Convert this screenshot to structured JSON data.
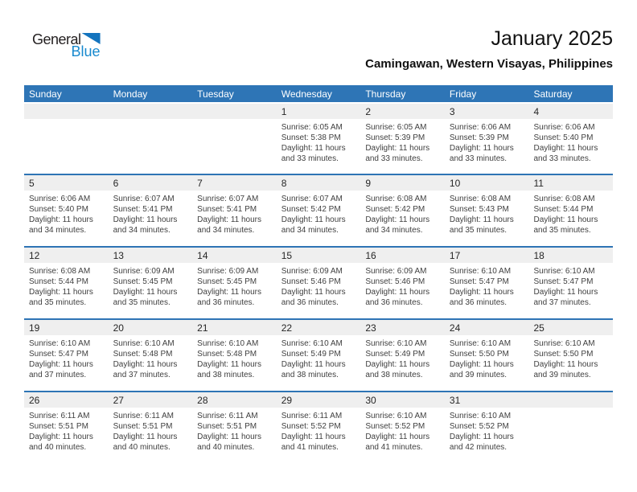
{
  "logo": {
    "general": "General",
    "blue": "Blue"
  },
  "header": {
    "title": "January 2025",
    "subtitle": "Camingawan, Western Visayas, Philippines"
  },
  "colors": {
    "header_bg": "#2E75B6",
    "row_line": "#2E74B5",
    "band_bg": "#EFEFEF",
    "logo_blue": "#1789CE",
    "logo_triangle": "#1474BE"
  },
  "calendar": {
    "day_headers": [
      "Sunday",
      "Monday",
      "Tuesday",
      "Wednesday",
      "Thursday",
      "Friday",
      "Saturday"
    ],
    "weeks": [
      [
        null,
        null,
        null,
        {
          "day": "1",
          "sunrise": "Sunrise: 6:05 AM",
          "sunset": "Sunset: 5:38 PM",
          "daylight": "Daylight: 11 hours and 33 minutes."
        },
        {
          "day": "2",
          "sunrise": "Sunrise: 6:05 AM",
          "sunset": "Sunset: 5:39 PM",
          "daylight": "Daylight: 11 hours and 33 minutes."
        },
        {
          "day": "3",
          "sunrise": "Sunrise: 6:06 AM",
          "sunset": "Sunset: 5:39 PM",
          "daylight": "Daylight: 11 hours and 33 minutes."
        },
        {
          "day": "4",
          "sunrise": "Sunrise: 6:06 AM",
          "sunset": "Sunset: 5:40 PM",
          "daylight": "Daylight: 11 hours and 33 minutes."
        }
      ],
      [
        {
          "day": "5",
          "sunrise": "Sunrise: 6:06 AM",
          "sunset": "Sunset: 5:40 PM",
          "daylight": "Daylight: 11 hours and 34 minutes."
        },
        {
          "day": "6",
          "sunrise": "Sunrise: 6:07 AM",
          "sunset": "Sunset: 5:41 PM",
          "daylight": "Daylight: 11 hours and 34 minutes."
        },
        {
          "day": "7",
          "sunrise": "Sunrise: 6:07 AM",
          "sunset": "Sunset: 5:41 PM",
          "daylight": "Daylight: 11 hours and 34 minutes."
        },
        {
          "day": "8",
          "sunrise": "Sunrise: 6:07 AM",
          "sunset": "Sunset: 5:42 PM",
          "daylight": "Daylight: 11 hours and 34 minutes."
        },
        {
          "day": "9",
          "sunrise": "Sunrise: 6:08 AM",
          "sunset": "Sunset: 5:42 PM",
          "daylight": "Daylight: 11 hours and 34 minutes."
        },
        {
          "day": "10",
          "sunrise": "Sunrise: 6:08 AM",
          "sunset": "Sunset: 5:43 PM",
          "daylight": "Daylight: 11 hours and 35 minutes."
        },
        {
          "day": "11",
          "sunrise": "Sunrise: 6:08 AM",
          "sunset": "Sunset: 5:44 PM",
          "daylight": "Daylight: 11 hours and 35 minutes."
        }
      ],
      [
        {
          "day": "12",
          "sunrise": "Sunrise: 6:08 AM",
          "sunset": "Sunset: 5:44 PM",
          "daylight": "Daylight: 11 hours and 35 minutes."
        },
        {
          "day": "13",
          "sunrise": "Sunrise: 6:09 AM",
          "sunset": "Sunset: 5:45 PM",
          "daylight": "Daylight: 11 hours and 35 minutes."
        },
        {
          "day": "14",
          "sunrise": "Sunrise: 6:09 AM",
          "sunset": "Sunset: 5:45 PM",
          "daylight": "Daylight: 11 hours and 36 minutes."
        },
        {
          "day": "15",
          "sunrise": "Sunrise: 6:09 AM",
          "sunset": "Sunset: 5:46 PM",
          "daylight": "Daylight: 11 hours and 36 minutes."
        },
        {
          "day": "16",
          "sunrise": "Sunrise: 6:09 AM",
          "sunset": "Sunset: 5:46 PM",
          "daylight": "Daylight: 11 hours and 36 minutes."
        },
        {
          "day": "17",
          "sunrise": "Sunrise: 6:10 AM",
          "sunset": "Sunset: 5:47 PM",
          "daylight": "Daylight: 11 hours and 36 minutes."
        },
        {
          "day": "18",
          "sunrise": "Sunrise: 6:10 AM",
          "sunset": "Sunset: 5:47 PM",
          "daylight": "Daylight: 11 hours and 37 minutes."
        }
      ],
      [
        {
          "day": "19",
          "sunrise": "Sunrise: 6:10 AM",
          "sunset": "Sunset: 5:47 PM",
          "daylight": "Daylight: 11 hours and 37 minutes."
        },
        {
          "day": "20",
          "sunrise": "Sunrise: 6:10 AM",
          "sunset": "Sunset: 5:48 PM",
          "daylight": "Daylight: 11 hours and 37 minutes."
        },
        {
          "day": "21",
          "sunrise": "Sunrise: 6:10 AM",
          "sunset": "Sunset: 5:48 PM",
          "daylight": "Daylight: 11 hours and 38 minutes."
        },
        {
          "day": "22",
          "sunrise": "Sunrise: 6:10 AM",
          "sunset": "Sunset: 5:49 PM",
          "daylight": "Daylight: 11 hours and 38 minutes."
        },
        {
          "day": "23",
          "sunrise": "Sunrise: 6:10 AM",
          "sunset": "Sunset: 5:49 PM",
          "daylight": "Daylight: 11 hours and 38 minutes."
        },
        {
          "day": "24",
          "sunrise": "Sunrise: 6:10 AM",
          "sunset": "Sunset: 5:50 PM",
          "daylight": "Daylight: 11 hours and 39 minutes."
        },
        {
          "day": "25",
          "sunrise": "Sunrise: 6:10 AM",
          "sunset": "Sunset: 5:50 PM",
          "daylight": "Daylight: 11 hours and 39 minutes."
        }
      ],
      [
        {
          "day": "26",
          "sunrise": "Sunrise: 6:11 AM",
          "sunset": "Sunset: 5:51 PM",
          "daylight": "Daylight: 11 hours and 40 minutes."
        },
        {
          "day": "27",
          "sunrise": "Sunrise: 6:11 AM",
          "sunset": "Sunset: 5:51 PM",
          "daylight": "Daylight: 11 hours and 40 minutes."
        },
        {
          "day": "28",
          "sunrise": "Sunrise: 6:11 AM",
          "sunset": "Sunset: 5:51 PM",
          "daylight": "Daylight: 11 hours and 40 minutes."
        },
        {
          "day": "29",
          "sunrise": "Sunrise: 6:11 AM",
          "sunset": "Sunset: 5:52 PM",
          "daylight": "Daylight: 11 hours and 41 minutes."
        },
        {
          "day": "30",
          "sunrise": "Sunrise: 6:10 AM",
          "sunset": "Sunset: 5:52 PM",
          "daylight": "Daylight: 11 hours and 41 minutes."
        },
        {
          "day": "31",
          "sunrise": "Sunrise: 6:10 AM",
          "sunset": "Sunset: 5:52 PM",
          "daylight": "Daylight: 11 hours and 42 minutes."
        },
        null
      ]
    ]
  }
}
